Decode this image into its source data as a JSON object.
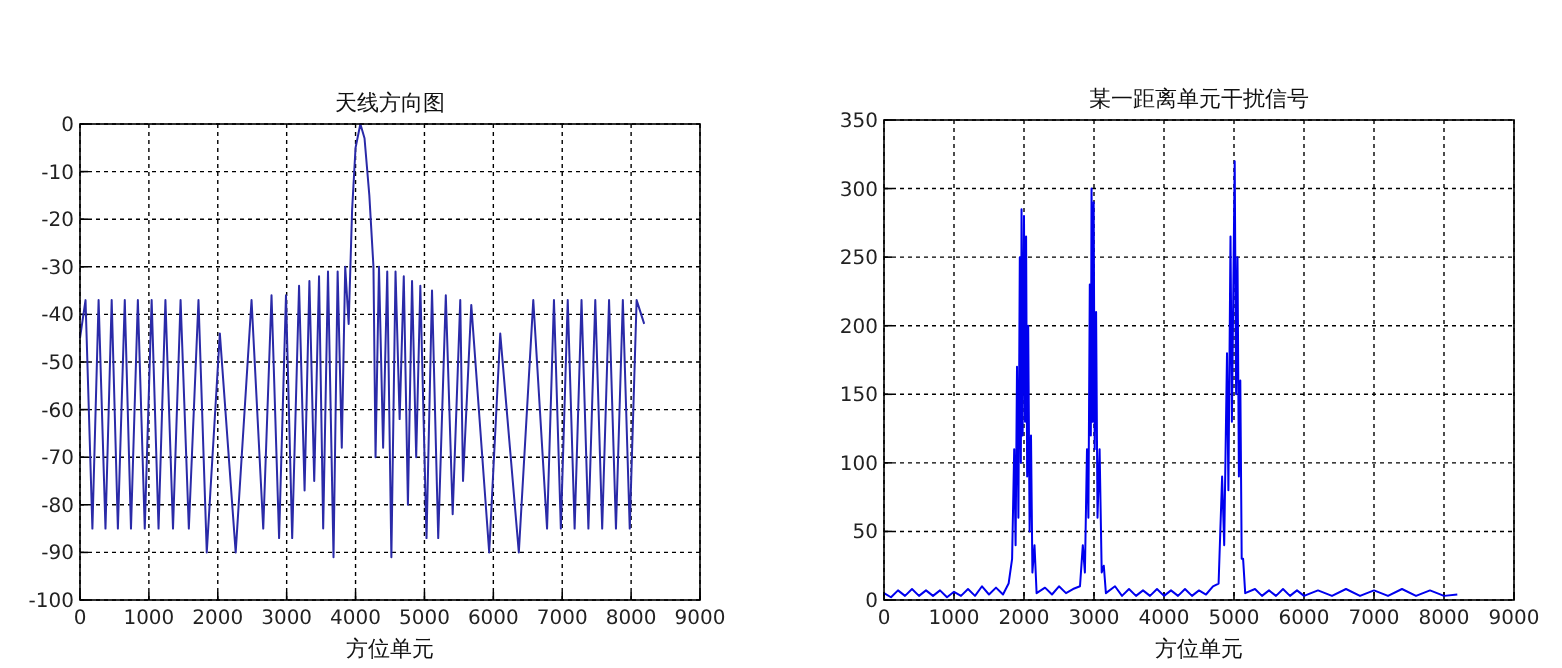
{
  "chart_data": [
    {
      "type": "line",
      "title": "天线方向图",
      "xlabel": "方位单元",
      "xlim": [
        0,
        9000
      ],
      "ylim": [
        -100,
        0
      ],
      "xticks": [
        0,
        1000,
        2000,
        3000,
        4000,
        5000,
        6000,
        7000,
        8000,
        9000
      ],
      "yticks": [
        -100,
        -90,
        -80,
        -70,
        -60,
        -50,
        -40,
        -30,
        -20,
        -10,
        0
      ],
      "grid": true,
      "marker": "none",
      "line_style": "solid",
      "series": [
        {
          "color": "#2a2aa8",
          "x": [
            0,
            80,
            180,
            270,
            370,
            460,
            550,
            650,
            740,
            840,
            940,
            1040,
            1140,
            1240,
            1350,
            1460,
            1580,
            1720,
            1840,
            2030,
            2260,
            2490,
            2660,
            2780,
            2890,
            2990,
            3080,
            3180,
            3260,
            3330,
            3400,
            3470,
            3530,
            3600,
            3680,
            3740,
            3800,
            3850,
            3900,
            3950,
            4000,
            4070,
            4130,
            4200,
            4260,
            4290,
            4340,
            4400,
            4460,
            4520,
            4580,
            4640,
            4700,
            4760,
            4820,
            4880,
            4940,
            5030,
            5110,
            5200,
            5310,
            5410,
            5520,
            5560,
            5680,
            5940,
            6100,
            6370,
            6580,
            6780,
            6880,
            6980,
            7080,
            7180,
            7280,
            7380,
            7480,
            7580,
            7680,
            7780,
            7880,
            7980,
            8080,
            8190
          ],
          "values": [
            -45,
            -37,
            -85,
            -37,
            -85,
            -37,
            -85,
            -37,
            -85,
            -37,
            -85,
            -37,
            -85,
            -37,
            -85,
            -37,
            -85,
            -37,
            -90,
            -44,
            -90,
            -37,
            -85,
            -36,
            -87,
            -36,
            -87,
            -34,
            -77,
            -33,
            -75,
            -32,
            -85,
            -31,
            -91,
            -31,
            -68,
            -30,
            -42,
            -18,
            -5,
            0,
            -3,
            -15,
            -30,
            -70,
            -30,
            -68,
            -31,
            -91,
            -31,
            -62,
            -32,
            -80,
            -33,
            -70,
            -34,
            -87,
            -35,
            -87,
            -36,
            -82,
            -37,
            -75,
            -38,
            -90,
            -44,
            -90,
            -37,
            -85,
            -37,
            -85,
            -37,
            -85,
            -37,
            -85,
            -37,
            -85,
            -37,
            -85,
            -37,
            -85,
            -37,
            -42
          ]
        }
      ]
    },
    {
      "type": "line",
      "title": "某一距离单元干扰信号",
      "xlabel": "方位单元",
      "xlim": [
        0,
        9000
      ],
      "ylim": [
        0,
        350
      ],
      "xticks": [
        0,
        1000,
        2000,
        3000,
        4000,
        5000,
        6000,
        7000,
        8000,
        9000
      ],
      "yticks": [
        0,
        50,
        100,
        150,
        200,
        250,
        300,
        350
      ],
      "grid": true,
      "marker": "none",
      "line_style": "solid",
      "series": [
        {
          "color": "#0000ee",
          "x": [
            0,
            100,
            200,
            300,
            400,
            500,
            600,
            700,
            800,
            900,
            1000,
            1100,
            1200,
            1300,
            1400,
            1500,
            1600,
            1700,
            1780,
            1830,
            1860,
            1880,
            1900,
            1920,
            1940,
            1955,
            1965,
            1980,
            2000,
            2015,
            2030,
            2045,
            2060,
            2080,
            2100,
            2120,
            2150,
            2180,
            2300,
            2400,
            2500,
            2600,
            2700,
            2800,
            2840,
            2870,
            2900,
            2920,
            2940,
            2955,
            2965,
            2980,
            2995,
            3010,
            3030,
            3050,
            3080,
            3110,
            3140,
            3170,
            3300,
            3400,
            3500,
            3600,
            3700,
            3800,
            3900,
            4000,
            4100,
            4200,
            4300,
            4400,
            4500,
            4600,
            4700,
            4780,
            4830,
            4860,
            4900,
            4920,
            4950,
            4970,
            5010,
            5030,
            5050,
            5070,
            5090,
            5110,
            5130,
            5160,
            5300,
            5400,
            5500,
            5600,
            5700,
            5800,
            5900,
            6000,
            6200,
            6400,
            6600,
            6800,
            7000,
            7200,
            7400,
            7600,
            7800,
            8000,
            8190
          ],
          "values": [
            5,
            2,
            7,
            3,
            8,
            3,
            7,
            3,
            7,
            2,
            6,
            3,
            8,
            3,
            10,
            4,
            9,
            4,
            12,
            30,
            110,
            40,
            170,
            60,
            250,
            100,
            285,
            120,
            280,
            130,
            265,
            90,
            200,
            50,
            120,
            20,
            40,
            5,
            9,
            4,
            10,
            5,
            8,
            10,
            40,
            20,
            110,
            60,
            230,
            120,
            300,
            130,
            290,
            110,
            210,
            60,
            110,
            20,
            25,
            5,
            10,
            3,
            8,
            3,
            7,
            3,
            8,
            3,
            7,
            3,
            8,
            3,
            7,
            4,
            10,
            12,
            90,
            40,
            180,
            80,
            265,
            130,
            320,
            150,
            250,
            90,
            160,
            30,
            30,
            5,
            8,
            3,
            7,
            3,
            8,
            3,
            7,
            3,
            7,
            3,
            8,
            3,
            7,
            3,
            8,
            3,
            7,
            3,
            4
          ]
        }
      ]
    }
  ]
}
